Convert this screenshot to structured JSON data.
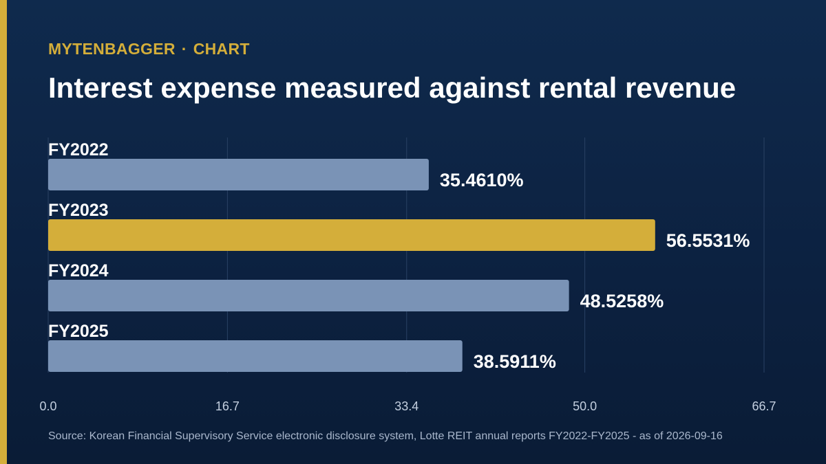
{
  "header": {
    "brand": "MYTENBAGGER",
    "separator": "·",
    "section": "CHART",
    "title": "Interest expense measured against rental revenue"
  },
  "footer": {
    "source": "Source: Korean Financial Supervisory Service electronic disclosure system, Lotte REIT annual reports FY2022-FY2025 - as of 2026-09-16"
  },
  "colors": {
    "background": "#0c2140",
    "accent": "#d4ae3a",
    "bar_default": "#7a93b6",
    "bar_highlight": "#d4ae3a",
    "grid": "#2a4264",
    "tick_text": "#c3cfdf"
  },
  "chart_data": {
    "type": "bar",
    "orientation": "horizontal",
    "categories": [
      "FY2022",
      "FY2023",
      "FY2024",
      "FY2025"
    ],
    "values": [
      35.461,
      56.5531,
      48.5258,
      38.5911
    ],
    "value_labels": [
      "35.4610%",
      "56.5531%",
      "48.5258%",
      "38.5911%"
    ],
    "highlight": "FY2023",
    "xlim": [
      0,
      66.7
    ],
    "x_ticks": [
      "0.0",
      "16.7",
      "33.4",
      "50.0",
      "66.7"
    ],
    "grid": true
  }
}
